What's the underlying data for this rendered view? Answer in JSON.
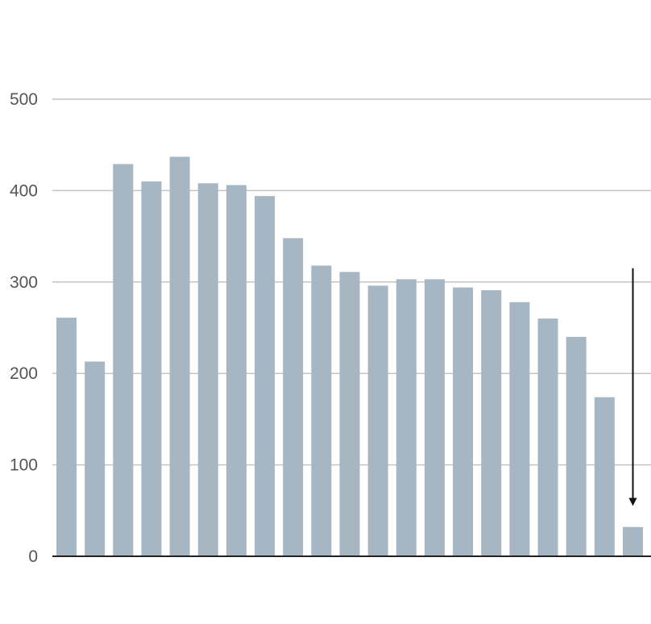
{
  "chart_data": {
    "type": "bar",
    "title": "",
    "xlabel": "",
    "ylabel": "",
    "ylim": [
      0,
      500
    ],
    "yticks": [
      0,
      100,
      200,
      300,
      400,
      500
    ],
    "grid": true,
    "values": [
      261,
      213,
      429,
      410,
      437,
      408,
      406,
      394,
      348,
      318,
      311,
      296,
      303,
      303,
      294,
      291,
      278,
      260,
      240,
      174,
      32
    ],
    "annotation": {
      "type": "downward-arrow",
      "target_index": 20,
      "from_value": 315,
      "to_value": 55
    },
    "colors": {
      "bar": "#a7b6c3",
      "grid": "#c4c4c4",
      "axis": "#222222",
      "tick_label": "#555555",
      "arrow": "#111111"
    }
  }
}
